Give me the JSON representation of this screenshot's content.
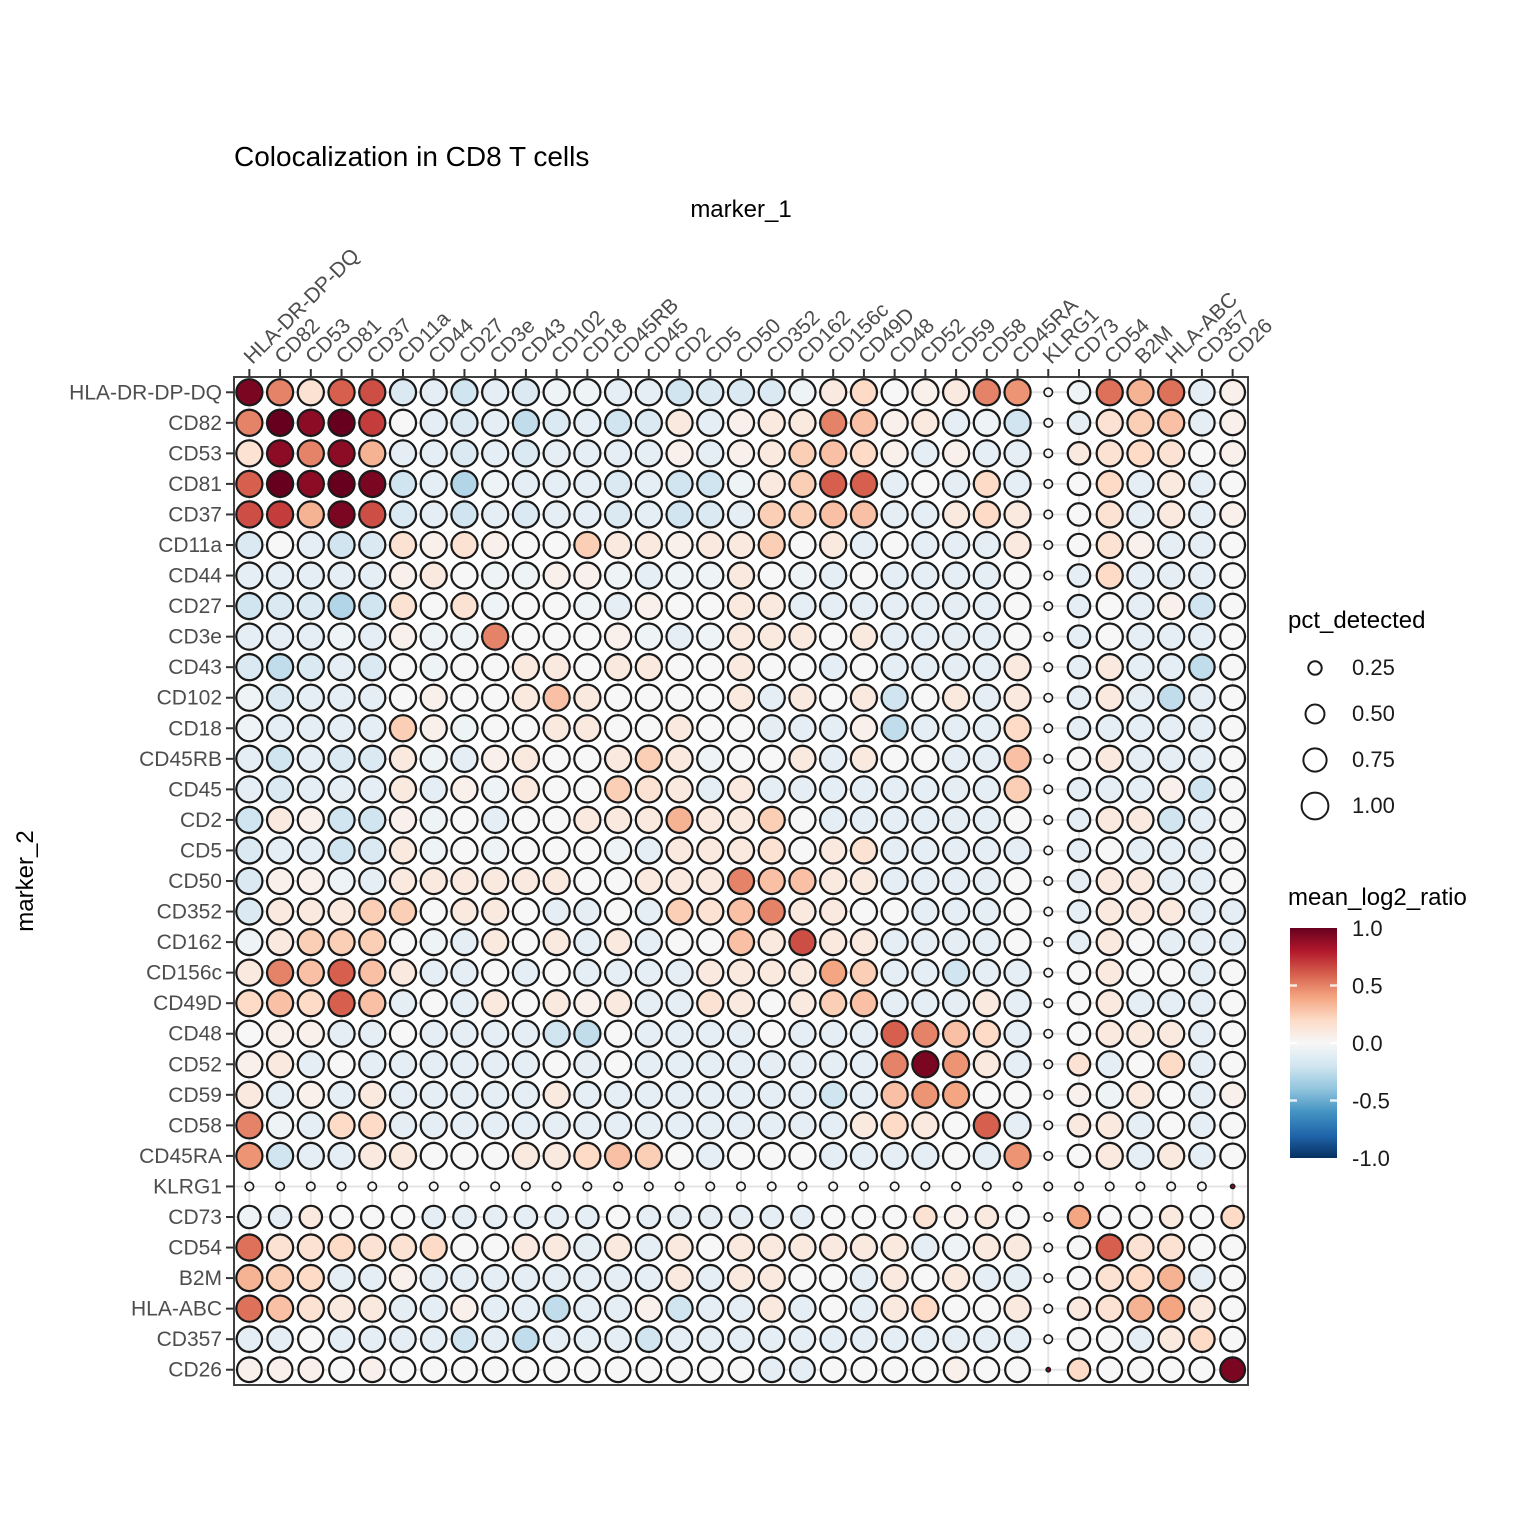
{
  "chart_data": {
    "type": "scatter",
    "subtype": "bubble-matrix",
    "title": "Colocalization in CD8 T cells",
    "xlabel": "marker_1",
    "ylabel": "marker_2",
    "markers": [
      "HLA-DR-DP-DQ",
      "CD82",
      "CD53",
      "CD81",
      "CD37",
      "CD11a",
      "CD44",
      "CD27",
      "CD3e",
      "CD43",
      "CD102",
      "CD18",
      "CD45RB",
      "CD45",
      "CD2",
      "CD5",
      "CD50",
      "CD352",
      "CD162",
      "CD156c",
      "CD49D",
      "CD48",
      "CD52",
      "CD59",
      "CD58",
      "CD45RA",
      "KLRG1",
      "CD73",
      "CD54",
      "B2M",
      "HLA-ABC",
      "CD357",
      "CD26"
    ],
    "pct_detected": [
      0.95,
      0.95,
      0.95,
      0.95,
      0.95,
      0.95,
      0.95,
      0.95,
      0.95,
      0.95,
      0.95,
      0.95,
      0.95,
      0.95,
      0.95,
      0.95,
      0.95,
      0.95,
      0.95,
      0.95,
      0.95,
      0.95,
      0.95,
      0.95,
      0.95,
      0.95,
      0.1,
      0.7,
      0.95,
      0.95,
      0.95,
      0.9,
      0.85
    ],
    "size_overrides": [
      {
        "marker_2": "KLRG1",
        "marker_1": "CD26",
        "pct": 0.025
      },
      {
        "marker_2": "CD26",
        "marker_1": "KLRG1",
        "pct": 0.025
      }
    ],
    "values": [
      [
        0.95,
        0.5,
        0.15,
        0.6,
        0.65,
        -0.15,
        -0.1,
        -0.2,
        -0.1,
        -0.15,
        -0.05,
        -0.05,
        -0.1,
        -0.1,
        -0.2,
        -0.15,
        -0.15,
        -0.15,
        -0.05,
        0.1,
        0.2,
        0,
        0.05,
        0.1,
        0.5,
        0.45,
        0,
        -0.05,
        0.55,
        0.35,
        0.55,
        -0.1,
        0.05
      ],
      [
        0.5,
        1,
        0.9,
        1,
        0.7,
        0,
        -0.1,
        -0.15,
        -0.1,
        -0.25,
        -0.15,
        -0.1,
        -0.2,
        -0.15,
        0.1,
        -0.1,
        0.05,
        0.1,
        0.1,
        0.5,
        0.3,
        0.05,
        0.1,
        -0.1,
        -0.05,
        -0.2,
        0,
        -0.1,
        0.15,
        0.25,
        0.3,
        -0.1,
        0.05
      ],
      [
        0.15,
        0.9,
        0.5,
        0.9,
        0.35,
        -0.1,
        -0.1,
        -0.15,
        -0.1,
        -0.15,
        -0.1,
        -0.1,
        -0.1,
        -0.1,
        0.05,
        -0.1,
        0.05,
        0.1,
        0.25,
        0.3,
        0.2,
        0.05,
        -0.1,
        0.05,
        -0.1,
        -0.1,
        0,
        0.1,
        0.15,
        0.2,
        0.15,
        0,
        0.05
      ],
      [
        0.6,
        1,
        0.9,
        1,
        0.95,
        -0.2,
        -0.1,
        -0.3,
        -0.05,
        -0.1,
        -0.1,
        -0.1,
        -0.15,
        -0.1,
        -0.2,
        -0.2,
        -0.05,
        0.1,
        0.25,
        0.6,
        0.6,
        -0.1,
        0,
        -0.1,
        0.2,
        -0.1,
        0,
        0,
        0.2,
        -0.1,
        0.1,
        -0.1,
        0
      ],
      [
        0.65,
        0.7,
        0.35,
        0.95,
        0.65,
        -0.15,
        -0.1,
        -0.2,
        -0.1,
        -0.15,
        -0.1,
        -0.1,
        -0.15,
        -0.1,
        -0.2,
        -0.15,
        -0.1,
        0.25,
        0.25,
        0.3,
        0.3,
        -0.1,
        -0.1,
        0.1,
        0.2,
        0.1,
        0,
        0,
        0.15,
        -0.1,
        0.1,
        -0.1,
        0.05
      ],
      [
        -0.15,
        0,
        -0.1,
        -0.2,
        -0.15,
        0.15,
        0.05,
        0.15,
        0.05,
        0,
        0,
        0.25,
        0.1,
        0.1,
        0.05,
        0.1,
        0.1,
        0.25,
        0,
        0.1,
        -0.1,
        0,
        -0.1,
        -0.1,
        -0.1,
        0.1,
        0,
        0,
        0.15,
        0.05,
        -0.1,
        -0.1,
        0
      ],
      [
        -0.1,
        -0.1,
        -0.1,
        -0.1,
        -0.1,
        0.05,
        0.1,
        0,
        -0.05,
        -0.05,
        0.05,
        0.05,
        -0.05,
        -0.1,
        -0.05,
        -0.05,
        0.1,
        0,
        -0.05,
        -0.1,
        0,
        -0.1,
        -0.1,
        -0.1,
        -0.1,
        0,
        0,
        -0.1,
        0.2,
        -0.1,
        -0.1,
        -0.1,
        0
      ],
      [
        -0.2,
        -0.15,
        -0.15,
        -0.3,
        -0.2,
        0.15,
        0,
        0.15,
        -0.05,
        0,
        0,
        -0.05,
        -0.1,
        0.05,
        0,
        0,
        0.1,
        0.1,
        -0.1,
        -0.1,
        -0.1,
        -0.1,
        -0.1,
        -0.1,
        -0.1,
        0,
        0,
        -0.1,
        0,
        -0.1,
        0.05,
        -0.2,
        0
      ],
      [
        -0.1,
        -0.1,
        -0.1,
        -0.05,
        -0.1,
        0.05,
        -0.05,
        -0.05,
        0.5,
        0,
        0,
        0,
        0.05,
        -0.05,
        -0.1,
        -0.05,
        0.1,
        0.1,
        0.1,
        0,
        0.1,
        -0.1,
        -0.1,
        -0.1,
        -0.1,
        0,
        0,
        -0.1,
        0,
        -0.1,
        -0.1,
        -0.1,
        0
      ],
      [
        -0.15,
        -0.25,
        -0.15,
        -0.1,
        -0.15,
        0,
        -0.05,
        0,
        0,
        0.1,
        0.1,
        0,
        0.1,
        0.1,
        0,
        0,
        0.1,
        0,
        0,
        -0.1,
        0,
        -0.1,
        -0.1,
        -0.1,
        -0.1,
        0.1,
        0,
        -0.1,
        0.1,
        -0.1,
        -0.1,
        -0.25,
        0
      ],
      [
        -0.05,
        -0.15,
        -0.1,
        -0.1,
        -0.1,
        0,
        0.05,
        0,
        0,
        0.1,
        0.3,
        0.1,
        0,
        0,
        0,
        0,
        0.1,
        -0.1,
        0.1,
        0,
        0.1,
        -0.2,
        0,
        0.1,
        -0.1,
        0.1,
        0,
        -0.1,
        0.1,
        -0.1,
        -0.25,
        -0.1,
        0
      ],
      [
        -0.05,
        -0.1,
        -0.1,
        -0.1,
        -0.1,
        0.25,
        0.05,
        -0.05,
        0,
        0,
        0.1,
        0.1,
        0,
        0,
        0.1,
        0,
        0,
        -0.1,
        -0.1,
        -0.1,
        0.05,
        -0.25,
        -0.1,
        -0.1,
        -0.1,
        0.2,
        0,
        -0.1,
        -0.1,
        -0.1,
        -0.1,
        -0.1,
        0
      ],
      [
        -0.1,
        -0.2,
        -0.1,
        -0.15,
        -0.15,
        0.1,
        -0.05,
        -0.1,
        0.05,
        0.1,
        0,
        0,
        0.1,
        0.25,
        0.1,
        -0.05,
        0,
        0,
        0.1,
        -0.1,
        0.1,
        0,
        0,
        -0.1,
        -0.1,
        0.3,
        0,
        0,
        0.1,
        -0.1,
        -0.1,
        -0.1,
        0
      ],
      [
        -0.1,
        -0.15,
        -0.1,
        -0.1,
        -0.1,
        0.1,
        -0.1,
        0.05,
        -0.05,
        0.1,
        0,
        0,
        0.25,
        0.15,
        0.1,
        -0.1,
        0.1,
        -0.1,
        -0.1,
        -0.1,
        -0.1,
        -0.1,
        -0.1,
        -0.1,
        -0.1,
        0.25,
        0,
        -0.1,
        -0.1,
        -0.1,
        0.05,
        -0.2,
        0
      ],
      [
        -0.2,
        0.1,
        0.05,
        -0.2,
        -0.2,
        0.05,
        -0.05,
        0,
        -0.1,
        0,
        0,
        0.1,
        0.1,
        0.1,
        0.35,
        0.1,
        0.1,
        0.25,
        0,
        -0.1,
        -0.1,
        -0.1,
        -0.1,
        -0.1,
        -0.1,
        0,
        0,
        -0.1,
        0.1,
        0.1,
        -0.2,
        -0.1,
        0
      ],
      [
        -0.15,
        -0.1,
        -0.1,
        -0.2,
        -0.15,
        0.1,
        -0.05,
        0,
        -0.05,
        0,
        0,
        0,
        -0.05,
        -0.1,
        0.1,
        0.1,
        0.1,
        0.15,
        0,
        0.1,
        0.15,
        -0.1,
        -0.1,
        -0.1,
        -0.1,
        -0.1,
        0,
        -0.1,
        0,
        -0.1,
        -0.1,
        -0.1,
        0
      ],
      [
        -0.15,
        0.05,
        0.05,
        -0.05,
        -0.1,
        0.1,
        0.1,
        0.1,
        0.1,
        0.1,
        0.1,
        0,
        0,
        0.1,
        0.1,
        0.1,
        0.5,
        0.3,
        0.3,
        0.1,
        0.1,
        -0.1,
        -0.1,
        -0.1,
        -0.1,
        0,
        0,
        -0.1,
        0.1,
        0.1,
        -0.1,
        -0.1,
        0
      ],
      [
        -0.15,
        0.1,
        0.1,
        0.1,
        0.25,
        0.25,
        0,
        0.1,
        0.1,
        0,
        -0.1,
        -0.1,
        0,
        -0.1,
        0.25,
        0.15,
        0.3,
        0.5,
        0.1,
        0.1,
        0,
        0,
        -0.1,
        -0.1,
        -0.1,
        0,
        0,
        -0.1,
        0.1,
        0.1,
        0.1,
        -0.1,
        -0.1
      ],
      [
        -0.05,
        0.1,
        0.25,
        0.25,
        0.25,
        0,
        -0.05,
        -0.1,
        0.1,
        0,
        0.1,
        -0.1,
        0.1,
        -0.1,
        0,
        0,
        0.3,
        0.1,
        0.65,
        0.1,
        0.1,
        -0.1,
        -0.1,
        -0.1,
        -0.1,
        0,
        0,
        -0.1,
        0.1,
        0,
        -0.1,
        -0.1,
        -0.1
      ],
      [
        0.1,
        0.5,
        0.3,
        0.6,
        0.3,
        0.1,
        -0.1,
        -0.1,
        0,
        -0.1,
        0,
        -0.1,
        -0.1,
        -0.1,
        -0.1,
        0.1,
        0.1,
        0.1,
        0.1,
        0.4,
        0.25,
        -0.1,
        -0.1,
        -0.2,
        -0.1,
        -0.1,
        0,
        0,
        0.1,
        0,
        0,
        -0.1,
        0
      ],
      [
        0.2,
        0.3,
        0.2,
        0.6,
        0.3,
        -0.1,
        0,
        -0.1,
        0.1,
        0,
        0.1,
        0.05,
        0.1,
        -0.1,
        -0.1,
        0.15,
        0.1,
        0,
        0.1,
        0.25,
        0.3,
        -0.1,
        -0.1,
        -0.1,
        0.1,
        -0.1,
        0,
        0,
        0.1,
        -0.1,
        -0.1,
        -0.1,
        0
      ],
      [
        0,
        0.05,
        0.05,
        -0.1,
        -0.1,
        0,
        -0.1,
        -0.1,
        -0.1,
        -0.1,
        -0.2,
        -0.25,
        0,
        -0.1,
        -0.1,
        -0.1,
        -0.1,
        0,
        -0.1,
        -0.1,
        -0.1,
        0.6,
        0.5,
        0.3,
        0.2,
        -0.1,
        0,
        0,
        0.1,
        0.1,
        0.1,
        -0.1,
        0
      ],
      [
        0.05,
        0.1,
        -0.1,
        0,
        -0.1,
        -0.1,
        -0.1,
        -0.1,
        -0.1,
        -0.1,
        0,
        -0.1,
        0,
        -0.1,
        -0.1,
        -0.1,
        -0.1,
        -0.1,
        -0.1,
        -0.1,
        -0.1,
        0.5,
        0.95,
        0.45,
        0.1,
        -0.1,
        0,
        0.15,
        -0.1,
        0,
        0.2,
        -0.1,
        0
      ],
      [
        0.1,
        -0.1,
        0.05,
        -0.1,
        0.1,
        -0.1,
        -0.1,
        -0.1,
        -0.1,
        -0.1,
        0.1,
        -0.1,
        -0.1,
        -0.1,
        -0.1,
        -0.1,
        -0.1,
        -0.1,
        -0.1,
        -0.2,
        -0.1,
        0.3,
        0.45,
        0.4,
        0,
        0,
        0,
        0.05,
        -0.05,
        0.1,
        0,
        -0.1,
        0.05
      ],
      [
        0.5,
        -0.05,
        -0.1,
        0.2,
        0.2,
        -0.1,
        -0.1,
        -0.1,
        -0.1,
        -0.1,
        -0.1,
        -0.1,
        -0.1,
        -0.1,
        -0.1,
        -0.1,
        -0.1,
        -0.1,
        -0.1,
        -0.1,
        0.1,
        0.2,
        0.1,
        0,
        0.6,
        -0.1,
        0,
        0.1,
        0.1,
        -0.1,
        0,
        -0.1,
        0
      ],
      [
        0.45,
        -0.2,
        -0.1,
        -0.1,
        0.1,
        0.1,
        0,
        0,
        0,
        0.1,
        0.1,
        0.2,
        0.3,
        0.25,
        0,
        -0.1,
        0,
        0,
        0,
        -0.1,
        -0.1,
        -0.1,
        -0.1,
        0,
        -0.1,
        0.45,
        0,
        0,
        0.1,
        -0.1,
        0.1,
        -0.1,
        0
      ],
      [
        0,
        0,
        0,
        0,
        0,
        0,
        0,
        0,
        0,
        0,
        0,
        0,
        0,
        0,
        0,
        0,
        0,
        0,
        0,
        0,
        0,
        0,
        0,
        0,
        0,
        0,
        0,
        0,
        0,
        0,
        0,
        0,
        0.9
      ],
      [
        -0.05,
        -0.1,
        0.1,
        0,
        0,
        0,
        -0.1,
        -0.1,
        -0.1,
        -0.1,
        -0.1,
        -0.1,
        0,
        -0.1,
        -0.1,
        -0.1,
        -0.1,
        -0.1,
        -0.1,
        0,
        0,
        0,
        0.15,
        0.05,
        0.1,
        0,
        0,
        0.4,
        0,
        0,
        0.1,
        0,
        0.2
      ],
      [
        0.55,
        0.15,
        0.15,
        0.2,
        0.15,
        0.15,
        0.2,
        0,
        0,
        0.1,
        0.1,
        -0.1,
        0.1,
        -0.1,
        0.1,
        0,
        0.1,
        0.1,
        0.1,
        0.1,
        0.1,
        0.1,
        -0.1,
        -0.05,
        0.1,
        0.1,
        0,
        0,
        0.6,
        0.15,
        0.15,
        0,
        0
      ],
      [
        0.35,
        0.25,
        0.2,
        -0.1,
        -0.1,
        0.05,
        -0.1,
        -0.1,
        -0.1,
        -0.1,
        -0.1,
        -0.1,
        -0.1,
        -0.1,
        0.1,
        -0.1,
        0.1,
        0.1,
        0,
        0,
        -0.1,
        0.1,
        0,
        0.1,
        -0.1,
        -0.1,
        0,
        0,
        0.15,
        0.2,
        0.35,
        -0.1,
        0
      ],
      [
        0.55,
        0.3,
        0.15,
        0.1,
        0.1,
        -0.1,
        -0.1,
        0.05,
        -0.1,
        -0.1,
        -0.25,
        -0.1,
        -0.1,
        0.05,
        -0.2,
        -0.1,
        -0.1,
        0.1,
        -0.1,
        0,
        -0.1,
        0.1,
        0.2,
        0,
        0,
        0.1,
        0,
        0.1,
        0.15,
        0.35,
        0.4,
        0.1,
        0
      ],
      [
        -0.1,
        -0.1,
        0,
        -0.1,
        -0.1,
        -0.1,
        -0.1,
        -0.2,
        -0.1,
        -0.25,
        -0.1,
        -0.1,
        -0.1,
        -0.2,
        -0.1,
        -0.1,
        -0.1,
        -0.1,
        -0.1,
        -0.1,
        -0.1,
        -0.1,
        -0.1,
        -0.1,
        -0.1,
        -0.1,
        0,
        0,
        0,
        -0.1,
        0.1,
        0.2,
        0
      ],
      [
        0.05,
        0.05,
        0.05,
        0,
        0.05,
        0,
        0,
        0,
        0,
        0,
        0,
        0,
        0,
        0,
        0,
        0,
        0,
        -0.1,
        -0.1,
        0,
        0,
        0,
        0,
        0.05,
        0,
        0,
        0.9,
        0.2,
        0,
        0,
        0,
        0,
        0.95
      ]
    ],
    "size_legend": {
      "title": "pct_detected",
      "values": [
        0.25,
        0.5,
        0.75,
        1.0
      ],
      "labels": [
        "0.25",
        "0.50",
        "0.75",
        "1.00"
      ]
    },
    "color_legend": {
      "title": "mean_log2_ratio",
      "domain": [
        -1,
        1
      ],
      "ticks": [
        1.0,
        0.5,
        0.0,
        -0.5,
        -1.0
      ],
      "tick_labels": [
        "1.0",
        "0.5",
        "0.0",
        "-0.5",
        "-1.0"
      ],
      "stops": [
        {
          "v": -1.0,
          "c": "#053061"
        },
        {
          "v": -0.8,
          "c": "#2166ac"
        },
        {
          "v": -0.6,
          "c": "#4393c3"
        },
        {
          "v": -0.4,
          "c": "#92c5de"
        },
        {
          "v": -0.2,
          "c": "#d1e5f0"
        },
        {
          "v": 0.0,
          "c": "#f7f7f7"
        },
        {
          "v": 0.2,
          "c": "#fddbc7"
        },
        {
          "v": 0.4,
          "c": "#f4a582"
        },
        {
          "v": 0.6,
          "c": "#d6604d"
        },
        {
          "v": 0.8,
          "c": "#b2182b"
        },
        {
          "v": 1.0,
          "c": "#67001f"
        }
      ]
    },
    "layout": {
      "grid": true,
      "grid_color": "#e4e4e4",
      "dot_outline_color": "#1a1a1a",
      "panel_border_color": "#404040",
      "axis_text_color": "#4d4d4d",
      "tick_color": "#333333",
      "size_scale": "area",
      "max_radius_px": 13.4,
      "legend_position": "right",
      "x_axis_position": "top",
      "x_label_angle_deg": 45
    }
  }
}
